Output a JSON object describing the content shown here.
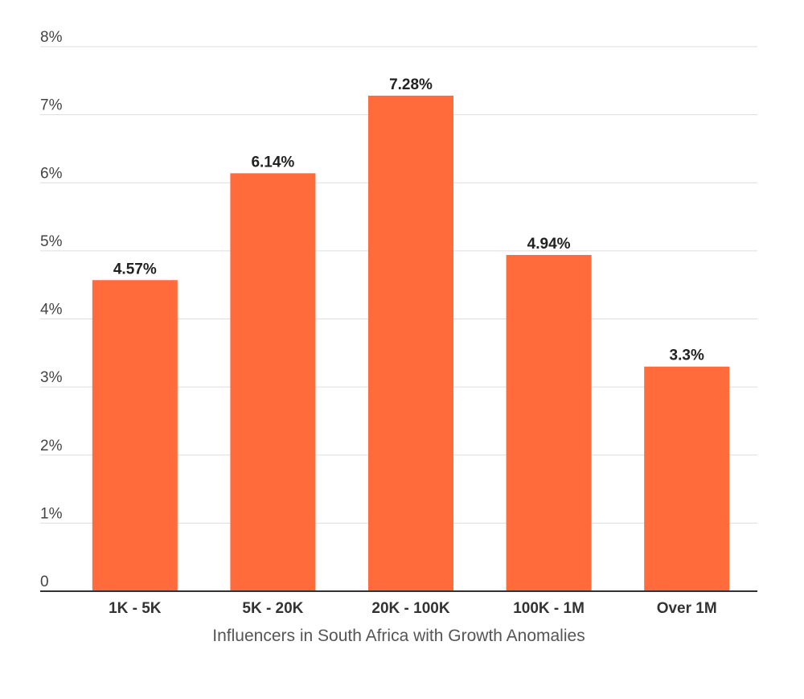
{
  "chart_data": {
    "type": "bar",
    "categories": [
      "1K - 5K",
      "5K - 20K",
      "20K - 100K",
      "100K - 1M",
      "Over 1M"
    ],
    "values": [
      4.57,
      6.14,
      7.28,
      4.94,
      3.3
    ],
    "value_labels": [
      "4.57%",
      "6.14%",
      "7.28%",
      "4.94%",
      "3.3%"
    ],
    "title": "",
    "xlabel": "Influencers in South Africa with Growth Anomalies",
    "ylabel": "",
    "ylim": [
      0,
      8
    ],
    "yticks": [
      0,
      1,
      2,
      3,
      4,
      5,
      6,
      7,
      8
    ],
    "ytick_labels": [
      "0",
      "1%",
      "2%",
      "3%",
      "4%",
      "5%",
      "6%",
      "7%",
      "8%"
    ],
    "grid": true,
    "legend": "none",
    "colors": {
      "bar": "#ff6b3b"
    }
  }
}
